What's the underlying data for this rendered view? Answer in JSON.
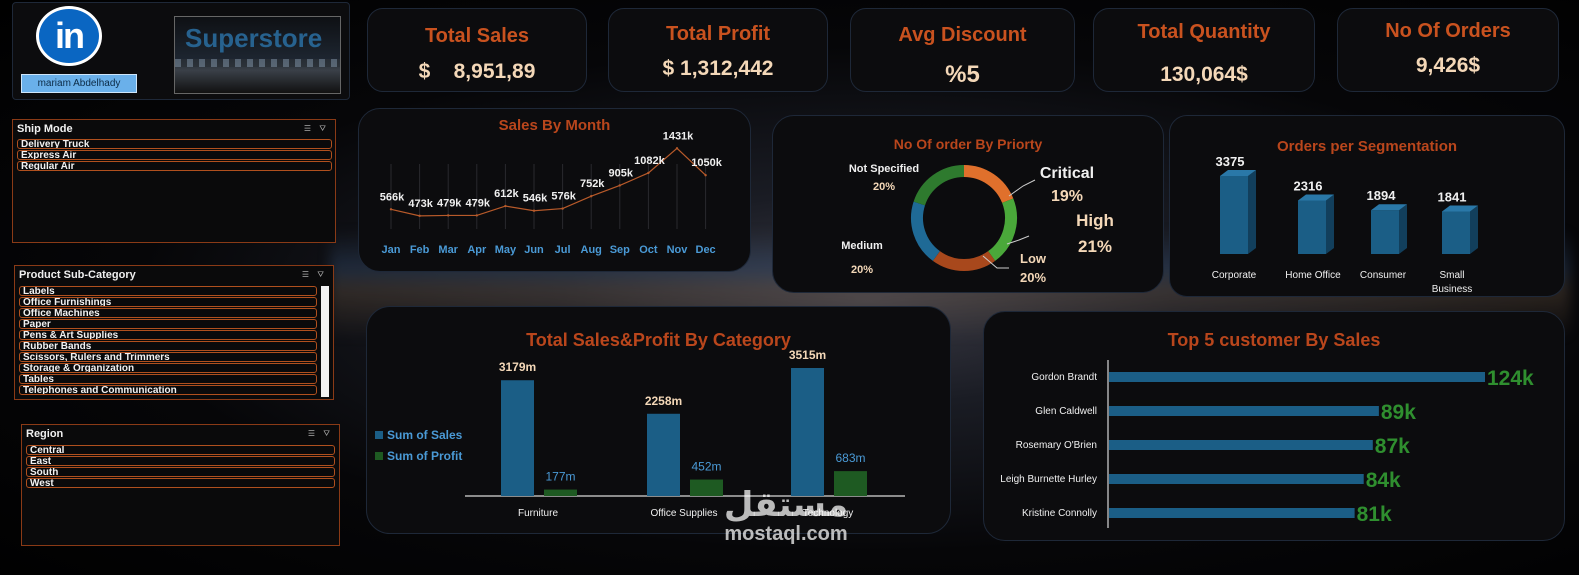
{
  "header": {
    "brand_logo": "linkedin-icon",
    "user_name": "mariam Abdelhady",
    "store_title": "Superstore"
  },
  "kpis": [
    {
      "title": "Total Sales",
      "value": "$    8,951,89"
    },
    {
      "title": "Total Profit",
      "value": "$ 1,312,442"
    },
    {
      "title": "Avg Discount",
      "value": "%5"
    },
    {
      "title": "Total Quantity",
      "value": "130,064$"
    },
    {
      "title": "No Of Orders",
      "value": "9,426$"
    }
  ],
  "slicers": {
    "ship_mode": {
      "title": "Ship Mode",
      "items": [
        "Delivery Truck",
        "Express Air",
        "Regular Air"
      ]
    },
    "sub_category": {
      "title": "Product Sub-Category",
      "items": [
        "Labels",
        "Office Furnishings",
        "Office Machines",
        "Paper",
        "Pens & Art Supplies",
        "Rubber Bands",
        "Scissors, Rulers and Trimmers",
        "Storage & Organization",
        "Tables",
        "Telephones and Communication"
      ]
    },
    "region": {
      "title": "Region",
      "items": [
        "Central",
        "East",
        "South",
        "West"
      ]
    }
  },
  "colors": {
    "accent": "#c9521f",
    "bar_blue": "#1b5e86",
    "bar_green": "#1e5a22",
    "donut_orange": "#e0702c",
    "donut_green": "#4aa83a",
    "donut_brown": "#a8481c",
    "donut_blue": "#1f6a96",
    "donut_dark_green": "#2e7a2e",
    "label_green": "#2f8f2f"
  },
  "charts": {
    "sales_by_month": {
      "title": "Sales By Month",
      "chart_data": {
        "type": "line",
        "categories": [
          "Jan",
          "Feb",
          "Mar",
          "Apr",
          "May",
          "Jun",
          "Jul",
          "Aug",
          "Sep",
          "Oct",
          "Nov",
          "Dec"
        ],
        "values": [
          566,
          473,
          479,
          479,
          612,
          546,
          576,
          752,
          905,
          1082,
          1431,
          1050
        ],
        "labels": [
          "566k",
          "473k",
          "479k",
          "479k",
          "612k",
          "546k",
          "576k",
          "752k",
          "905k",
          "1082k",
          "1431k",
          "1050k"
        ]
      }
    },
    "orders_by_priority": {
      "title": "No Of order By Priorty",
      "chart_data": {
        "type": "pie",
        "slices": [
          {
            "name": "Critical",
            "label": "19%",
            "value": 19
          },
          {
            "name": "High",
            "label": "21%",
            "value": 21
          },
          {
            "name": "Low",
            "label": "20%",
            "value": 20
          },
          {
            "name": "Medium",
            "label": "20%",
            "value": 20
          },
          {
            "name": "Not Specified",
            "label": "20%",
            "value": 20
          }
        ]
      }
    },
    "orders_per_segment": {
      "title": "Orders per Segmentation",
      "chart_data": {
        "type": "bar",
        "categories": [
          "Corporate",
          "Home Office",
          "Consumer",
          "Small Business"
        ],
        "values": [
          3375,
          2316,
          1894,
          1841
        ]
      }
    },
    "sales_profit_category": {
      "title": "Total Sales&Profit By Category",
      "chart_data": {
        "type": "bar",
        "categories": [
          "Furniture",
          "Office Supplies",
          "Technology"
        ],
        "series": [
          {
            "name": "Sum of Sales",
            "values": [
              3179,
              2258,
              3515
            ],
            "labels": [
              "3179m",
              "2258m",
              "3515m"
            ]
          },
          {
            "name": "Sum of Profit",
            "values": [
              177,
              452,
              683
            ],
            "labels": [
              "177m",
              "452m",
              "683m"
            ]
          }
        ]
      }
    },
    "top_customers": {
      "title": "Top 5 customer By Sales",
      "chart_data": {
        "type": "bar",
        "orientation": "horizontal",
        "categories": [
          "Gordon Brandt",
          "Glen Caldwell",
          "Rosemary O'Brien",
          "Leigh Burnette Hurley",
          "Kristine Connolly"
        ],
        "values": [
          124,
          89,
          87,
          84,
          81
        ],
        "labels": [
          "124k",
          "89k",
          "87k",
          "84k",
          "81k"
        ]
      }
    }
  },
  "watermark": {
    "arabic": "مستقل",
    "latin": "mostaql.com"
  }
}
